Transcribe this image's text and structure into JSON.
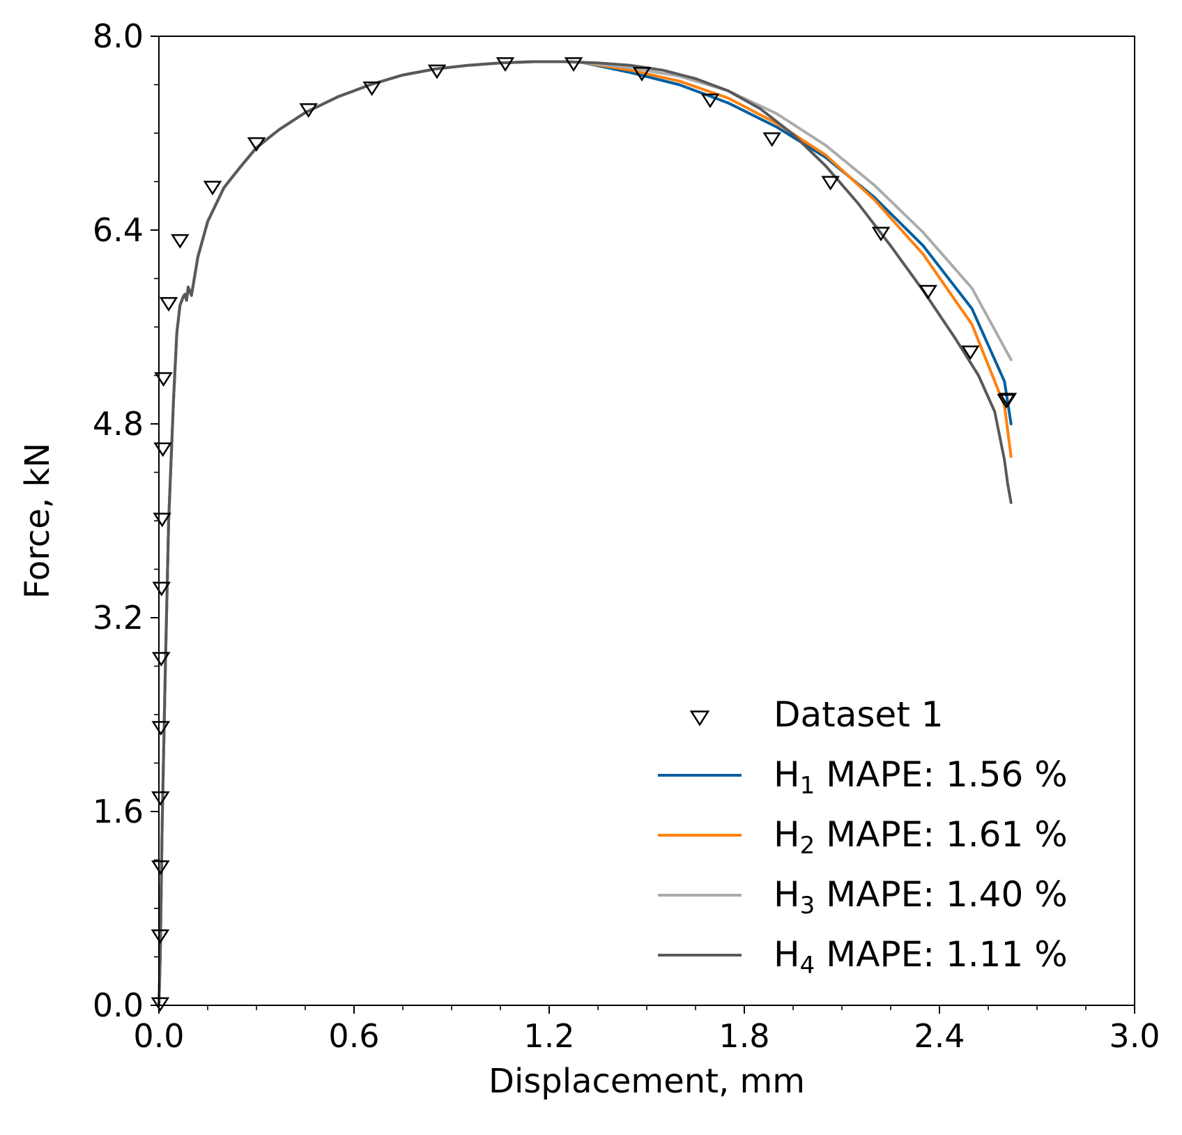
{
  "chart_data": {
    "type": "line",
    "xlabel": "Displacement, mm",
    "ylabel": "Force, kN",
    "xlim": [
      0.0,
      3.0
    ],
    "ylim": [
      0.0,
      8.0
    ],
    "x_ticks": [
      "0.0",
      "0.6",
      "1.2",
      "1.8",
      "2.4",
      "3.0"
    ],
    "y_ticks": [
      "0.0",
      "1.6",
      "3.2",
      "4.8",
      "6.4",
      "8.0"
    ],
    "x_minor_step": 0.15,
    "y_minor_step": 0.4,
    "grid": false,
    "legend_position": "lower-right",
    "markers": {
      "name": "Dataset 1",
      "symbol": "triangle-down-open",
      "color": "#000000",
      "x": [
        0.004,
        0.004,
        0.005,
        0.005,
        0.006,
        0.007,
        0.008,
        0.01,
        0.012,
        0.014,
        0.03,
        0.065,
        0.165,
        0.3,
        0.46,
        0.655,
        0.855,
        1.065,
        1.275,
        1.485,
        1.695,
        1.885,
        2.065,
        2.22,
        2.365,
        2.495,
        2.605,
        2.61
      ],
      "y": [
        0.02,
        0.58,
        1.15,
        1.72,
        2.3,
        2.87,
        3.45,
        4.02,
        4.6,
        5.18,
        5.8,
        6.32,
        6.76,
        7.12,
        7.4,
        7.58,
        7.72,
        7.78,
        7.78,
        7.7,
        7.48,
        7.16,
        6.8,
        6.38,
        5.9,
        5.4,
        5.0,
        5.01
      ]
    },
    "series": [
      {
        "name": "H₁ MAPE: 1.56 %",
        "label_main": "H",
        "label_sub": "1",
        "label_rest": " MAPE: 1.56 %",
        "color": "#005f9e",
        "x": [
          1.3,
          1.45,
          1.6,
          1.75,
          1.9,
          2.05,
          2.2,
          2.35,
          2.5,
          2.6,
          2.62
        ],
        "y": [
          7.755,
          7.7,
          7.6,
          7.45,
          7.25,
          7.0,
          6.67,
          6.27,
          5.75,
          5.15,
          4.8
        ]
      },
      {
        "name": "H₂ MAPE: 1.61 %",
        "label_main": "H",
        "label_sub": "2",
        "label_rest": " MAPE: 1.61 %",
        "color": "#ff800e",
        "x": [
          1.3,
          1.45,
          1.6,
          1.75,
          1.9,
          2.05,
          2.2,
          2.35,
          2.5,
          2.6,
          2.62
        ],
        "y": [
          7.755,
          7.72,
          7.63,
          7.49,
          7.28,
          7.02,
          6.65,
          6.2,
          5.62,
          4.95,
          4.53
        ]
      },
      {
        "name": "H₃ MAPE: 1.40 %",
        "label_main": "H",
        "label_sub": "3",
        "label_rest": " MAPE: 1.40 %",
        "color": "#ababab",
        "x": [
          1.3,
          1.45,
          1.6,
          1.75,
          1.9,
          2.05,
          2.2,
          2.35,
          2.5,
          2.62
        ],
        "y": [
          7.765,
          7.74,
          7.67,
          7.55,
          7.36,
          7.1,
          6.77,
          6.38,
          5.92,
          5.33
        ]
      },
      {
        "name": "H₄ MAPE: 1.11 %",
        "label_main": "H",
        "label_sub": "4",
        "label_rest": " MAPE: 1.11 %",
        "color": "#595959",
        "x": [
          0.0,
          0.004,
          0.01,
          0.02,
          0.03,
          0.045,
          0.055,
          0.065,
          0.075,
          0.08,
          0.085,
          0.09,
          0.1,
          0.12,
          0.15,
          0.2,
          0.25,
          0.3,
          0.37,
          0.45,
          0.55,
          0.65,
          0.75,
          0.85,
          0.95,
          1.05,
          1.15,
          1.25,
          1.35,
          1.45,
          1.55,
          1.65,
          1.75,
          1.85,
          1.95,
          2.05,
          2.15,
          2.25,
          2.35,
          2.45,
          2.52,
          2.57,
          2.6,
          2.61,
          2.62
        ],
        "y": [
          0.0,
          0.4,
          1.5,
          2.8,
          4.0,
          5.0,
          5.55,
          5.78,
          5.85,
          5.87,
          5.82,
          5.93,
          5.86,
          6.18,
          6.47,
          6.75,
          6.92,
          7.08,
          7.23,
          7.37,
          7.5,
          7.6,
          7.68,
          7.73,
          7.76,
          7.78,
          7.79,
          7.79,
          7.78,
          7.76,
          7.72,
          7.65,
          7.55,
          7.4,
          7.19,
          6.93,
          6.62,
          6.27,
          5.9,
          5.5,
          5.2,
          4.9,
          4.5,
          4.3,
          4.15
        ]
      }
    ],
    "shared_prefix": {
      "note_series": "H4",
      "description_x": [
        0.0,
        0.004,
        0.01,
        0.02,
        0.03,
        0.045,
        0.055,
        0.065,
        0.075,
        0.08,
        0.085,
        0.09,
        0.1,
        0.12,
        0.15,
        0.2,
        0.25,
        0.3,
        0.37,
        0.45,
        0.55,
        0.65,
        0.75,
        0.85,
        0.95,
        1.05,
        1.15,
        1.25,
        1.3
      ],
      "description_y": [
        0.0,
        0.4,
        1.5,
        2.8,
        4.0,
        5.0,
        5.55,
        5.78,
        5.85,
        5.87,
        5.82,
        5.93,
        5.86,
        6.18,
        6.47,
        6.75,
        6.92,
        7.08,
        7.23,
        7.37,
        7.5,
        7.6,
        7.68,
        7.73,
        7.76,
        7.78,
        7.79,
        7.79,
        7.785
      ]
    }
  }
}
